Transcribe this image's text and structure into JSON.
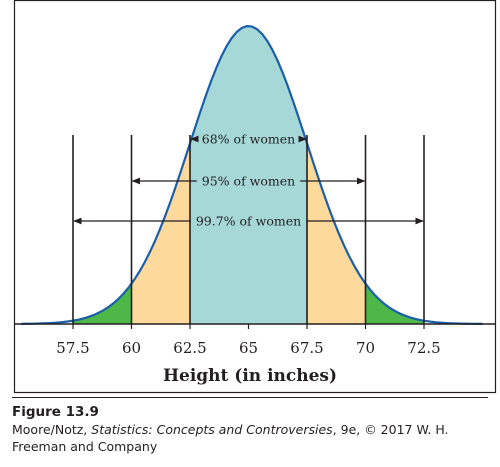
{
  "chart_data": {
    "type": "area",
    "distribution": "normal",
    "mean": 65,
    "sd": 2.5,
    "xlabel": "Height (in inches)",
    "xticks": [
      "57.5",
      "60",
      "62.5",
      "65",
      "67.5",
      "70",
      "72.5"
    ],
    "xtick_values": [
      57.5,
      60,
      62.5,
      65,
      67.5,
      70,
      72.5
    ],
    "xlim": [
      55.3,
      75.0
    ],
    "grid": false,
    "legend": "none",
    "regions": [
      {
        "from": 62.5,
        "to": 67.5,
        "color": "#a7d8d8"
      },
      {
        "from": 60,
        "to": 62.5,
        "color": "#fdd99b"
      },
      {
        "from": 67.5,
        "to": 70,
        "color": "#fdd99b"
      },
      {
        "from": 57.5,
        "to": 60,
        "color": "#4db848"
      },
      {
        "from": 70,
        "to": 72.5,
        "color": "#4db848"
      }
    ],
    "curve_color": "#1b5faa",
    "annotations": [
      {
        "label": "68% of women",
        "from": 62.5,
        "to": 67.5
      },
      {
        "label": "95% of women",
        "from": 60,
        "to": 70
      },
      {
        "label": "99.7% of women",
        "from": 57.5,
        "to": 72.5
      }
    ]
  },
  "caption": {
    "figure_label": "Figure 13.9",
    "credit_pre": "Moore/Notz, ",
    "credit_title": "Statistics: Concepts and Controversies",
    "credit_post": ", 9e, © 2017 W. H. Freeman and Company"
  }
}
